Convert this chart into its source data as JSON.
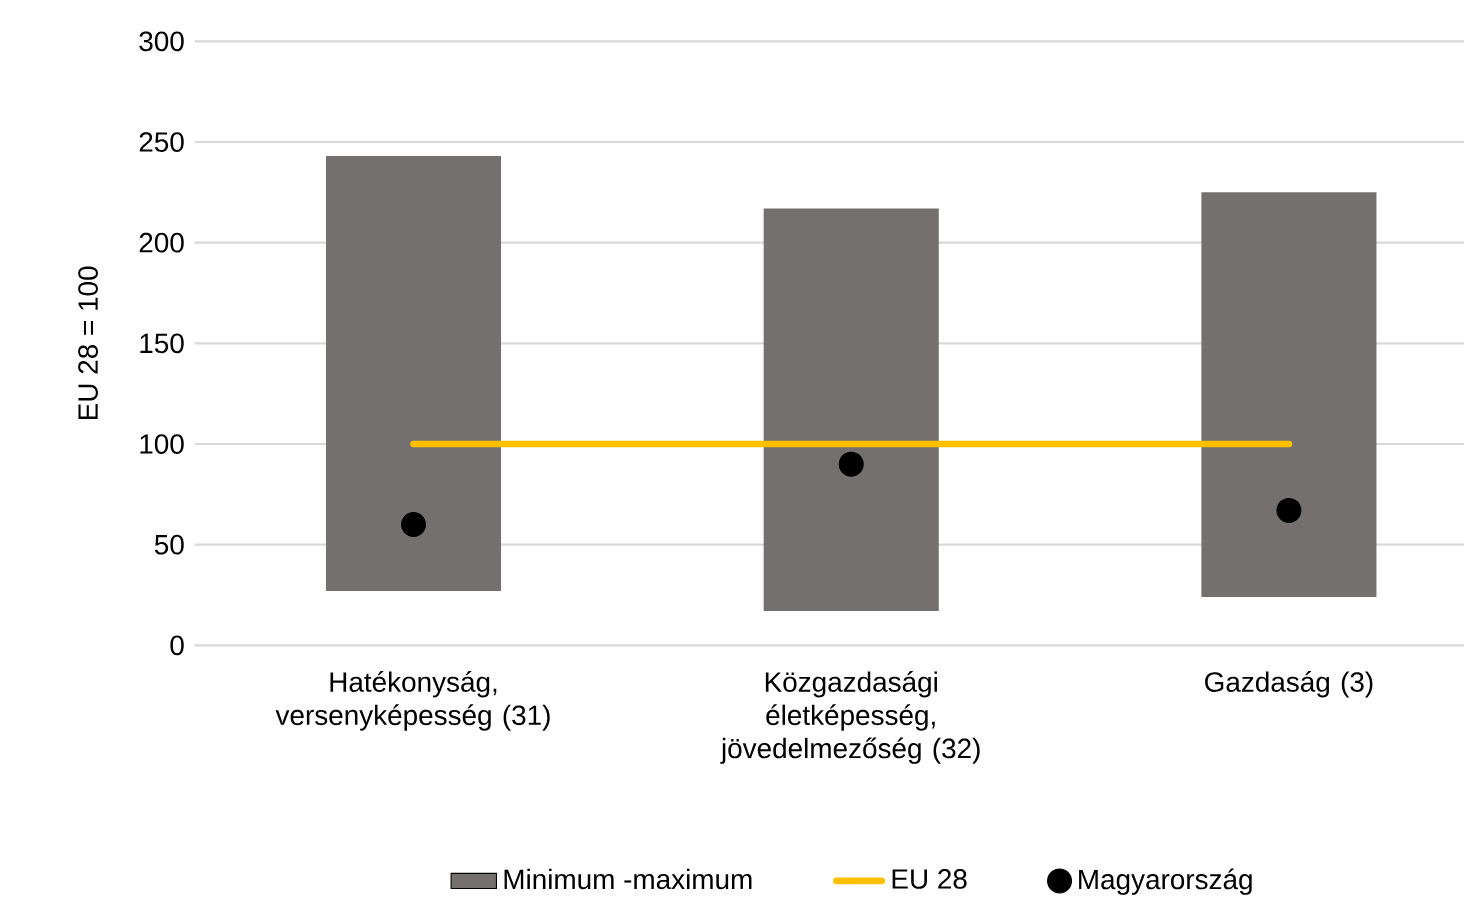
{
  "chart_data": {
    "type": "bar",
    "ylabel": "EU 28 = 100",
    "categories": [
      "Hatékonyság, versenyképesség (31)",
      "Közgazdasági életképesség, jövedelmezőség (32)",
      "Gazdaság (3)"
    ],
    "series": [
      {
        "name": "Minimum -maximum",
        "color": "#757070",
        "base": [
          27,
          17,
          24
        ],
        "values": [
          216,
          200,
          201
        ]
      },
      {
        "name": "EU 28",
        "type": "line",
        "color": "#ffc000",
        "values": [
          100,
          100,
          100
        ],
        "marker": "none"
      },
      {
        "name": "Magyarország",
        "type": "scatter",
        "color": "#000000",
        "values": [
          60,
          90,
          67
        ],
        "marker": "circle"
      }
    ],
    "ylim": [
      0,
      300
    ],
    "yticks": [
      0,
      50,
      100,
      150,
      200,
      250,
      300
    ],
    "grid": "y",
    "legend": "bottom"
  }
}
